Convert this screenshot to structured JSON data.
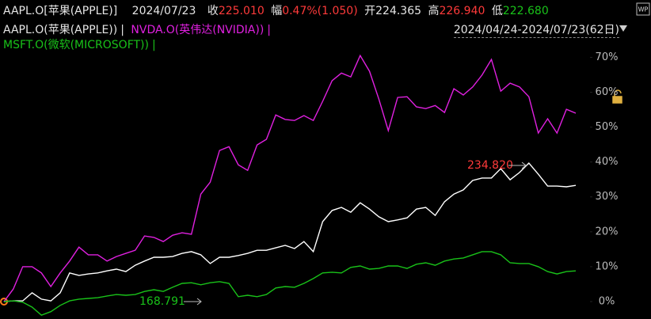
{
  "header": {
    "symbol": "AAPL.O[苹果(APPLE)]",
    "date": "2024/07/23",
    "close_label": "收",
    "close": "225.010",
    "change_label": "幅",
    "change": "0.47%(1.050)",
    "open_label": "开",
    "open": "224.365",
    "high_label": "高",
    "high": "226.940",
    "low_label": "低",
    "low": "222.680",
    "date_range": "2024/04/24-2024/07/23(62日)",
    "corner_badge": "WP",
    "legend_separator": "|"
  },
  "chart_data": {
    "type": "line",
    "series": [
      {
        "name": "AAPL.O(苹果(APPLE))",
        "color": "#ffffff",
        "values": [
          0,
          0.2,
          0.2,
          2.5,
          0.7,
          0.2,
          2.5,
          8.2,
          7.5,
          7.9,
          8.2,
          8.8,
          9.3,
          8.6,
          10.4,
          11.6,
          12.7,
          12.7,
          12.9,
          13.8,
          14.3,
          13.4,
          10.9,
          12.7,
          12.7,
          13.2,
          13.8,
          14.7,
          14.7,
          15.4,
          16.1,
          15.2,
          17.2,
          14.3,
          22.9,
          26.1,
          27,
          25.6,
          28.3,
          26.5,
          24.3,
          22.9,
          23.4,
          24,
          26.5,
          27,
          24.7,
          28.6,
          30.8,
          32,
          34.7,
          35.4,
          35.4,
          38.1,
          34.9,
          37,
          39.7,
          36.5,
          33.1,
          33.1,
          32.9,
          33.3
        ]
      },
      {
        "name": "NVDA.O(英伟达(NVIDIA))",
        "color": "#e020e0",
        "values": [
          0,
          3.6,
          10,
          10,
          8.2,
          4.3,
          8.2,
          11.6,
          15.6,
          13.4,
          13.4,
          11.6,
          12.9,
          13.8,
          14.7,
          18.8,
          18.4,
          17.2,
          19,
          19.7,
          19.3,
          30.8,
          34.2,
          43.3,
          44.4,
          39.2,
          37.6,
          44.9,
          46.5,
          53.5,
          52.2,
          51.9,
          53.3,
          51.9,
          57.4,
          63.3,
          65.5,
          64.4,
          70.5,
          66,
          58,
          49,
          58.5,
          58.7,
          55.8,
          55.3,
          56.2,
          54.2,
          61,
          59.2,
          61.5,
          64.9,
          69.4,
          60.3,
          62.6,
          61.5,
          58.7,
          48.3,
          52.4,
          48.3,
          55.1,
          54
        ]
      },
      {
        "name": "MSFT.O(微软(MICROSOFT))",
        "color": "#19c219",
        "values": [
          0,
          0.2,
          -0.2,
          -1.6,
          -3.9,
          -2.9,
          -1.1,
          0.2,
          0.7,
          0.9,
          1.1,
          1.6,
          2,
          1.8,
          2,
          2.9,
          3.4,
          2.9,
          4.1,
          5.2,
          5.4,
          4.8,
          5.4,
          5.7,
          5.2,
          1.4,
          1.8,
          1.4,
          2,
          3.9,
          4.3,
          4.1,
          5.2,
          6.6,
          8.2,
          8.4,
          8.2,
          9.8,
          10.2,
          9.3,
          9.5,
          10.2,
          10.2,
          9.5,
          10.7,
          11.1,
          10.4,
          11.6,
          12.2,
          12.5,
          13.4,
          14.3,
          14.3,
          13.4,
          11.1,
          10.9,
          10.9,
          10,
          8.6,
          7.9,
          8.6,
          8.8
        ]
      }
    ],
    "ylim": [
      -5,
      76
    ],
    "yticks": [
      {
        "value": 0,
        "label": "0%"
      },
      {
        "value": 10,
        "label": "10%"
      },
      {
        "value": 20,
        "label": "20%"
      },
      {
        "value": 30,
        "label": "30%"
      },
      {
        "value": 40,
        "label": "40%"
      },
      {
        "value": 50,
        "label": "50%"
      },
      {
        "value": 60,
        "label": "60%"
      },
      {
        "value": 70,
        "label": "70%"
      }
    ],
    "annotations": [
      {
        "text": "234.820",
        "color": "#ff3a3a"
      },
      {
        "text": "168.791",
        "color": "#19c219"
      }
    ]
  }
}
